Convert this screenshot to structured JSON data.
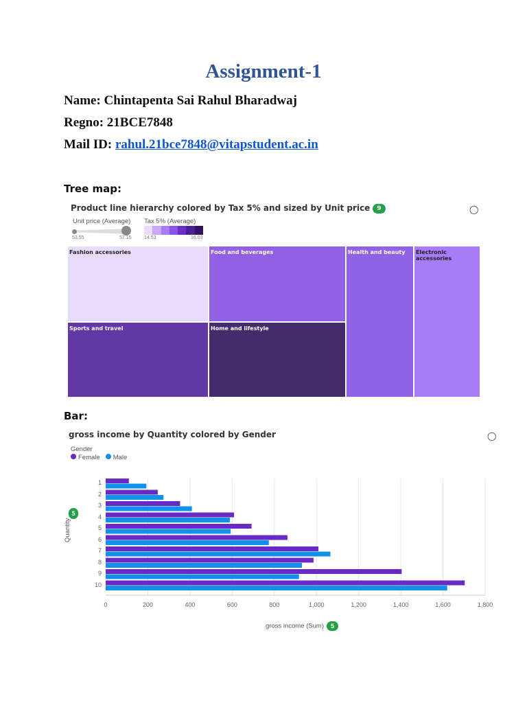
{
  "doc": {
    "title": "Assignment-1",
    "name": "Name: Chintapenta Sai Rahul Bharadwaj",
    "regno": "Regno: 21BCE7848",
    "mail_label": "Mail ID: ",
    "mail": "rahul.21bce7848@vitapstudent.ac.in"
  },
  "treemap": {
    "section": "Tree map:",
    "title": "Product line hierarchy colored by Tax 5% and sized by Unit price",
    "badge": "9",
    "size_legend": {
      "label": "Unit price (Average)",
      "min": "53.55",
      "max": "57.15"
    },
    "color_legend": {
      "label": "Tax 5% (Average)",
      "min": "14.53",
      "max": "16.03",
      "colors": [
        "#e8dcfd",
        "#c9a8fb",
        "#a87cf9",
        "#8a55e6",
        "#6a2fc9",
        "#4d1f96",
        "#2e1263"
      ]
    },
    "tiles": [
      {
        "label": "Fashion accessories",
        "color": "#e8dcfd",
        "text": "#222"
      },
      {
        "label": "Food and beverages",
        "color": "#9160e3",
        "text": "#fff"
      },
      {
        "label": "Health and beauty",
        "color": "#9162e4",
        "text": "#fff"
      },
      {
        "label": "Electronic accessories",
        "color": "#a87cf9",
        "text": "#222"
      },
      {
        "label": "Sports and travel",
        "color": "#6437a6",
        "text": "#fff"
      },
      {
        "label": "Home and lifestyle",
        "color": "#432b6c",
        "text": "#fff"
      }
    ]
  },
  "bar": {
    "section": "Bar:",
    "chart_data": {
      "type": "bar",
      "orientation": "horizontal",
      "title": "gross income by Quantity colored by Gender",
      "legend_title": "Gender",
      "legend_position": "top-left",
      "categories": [
        "1",
        "2",
        "3",
        "4",
        "5",
        "6",
        "7",
        "8",
        "9",
        "10"
      ],
      "series": [
        {
          "name": "Female",
          "color": "#6929c4",
          "values": [
            110,
            247,
            353,
            609,
            692,
            862,
            1009,
            986,
            1404,
            1703
          ]
        },
        {
          "name": "Male",
          "color": "#1192e8",
          "values": [
            193,
            274,
            409,
            589,
            593,
            774,
            1066,
            931,
            917,
            1620
          ]
        }
      ],
      "xlabel": "gross income (Sum)",
      "ylabel": "Quantity",
      "xlim": [
        0,
        1800
      ],
      "xticks": [
        "0",
        "200",
        "400",
        "600",
        "800",
        "1,000",
        "1,200",
        "1,400",
        "1,600",
        "1,800"
      ],
      "grid": true,
      "x_badge": "5",
      "y_badge": "5"
    }
  }
}
